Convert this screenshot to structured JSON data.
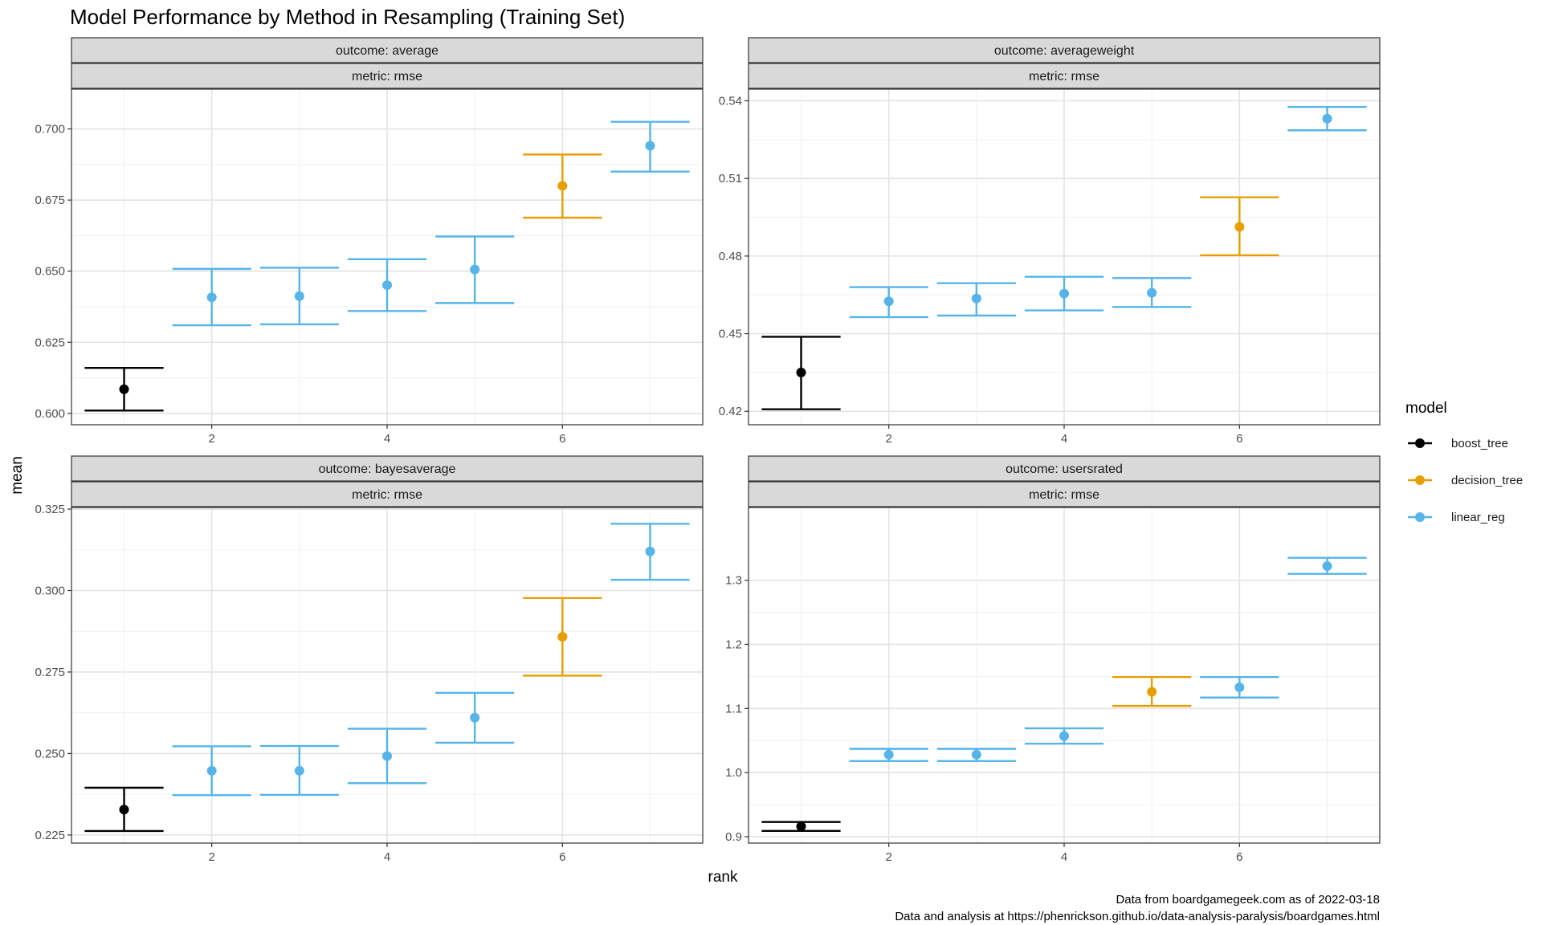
{
  "title": "Model Performance by Method in Resampling (Training Set)",
  "xlabel": "rank",
  "ylabel": "mean",
  "legend": {
    "title": "model",
    "position": "right",
    "entries": [
      {
        "name": "boost_tree",
        "color": "#000000"
      },
      {
        "name": "decision_tree",
        "color": "#E69F00"
      },
      {
        "name": "linear_reg",
        "color": "#56B4E9"
      }
    ]
  },
  "caption": {
    "line1": "Data from boardgamegeek.com as of 2022-03-18",
    "line2": "Data and analysis at https://phenrickson.github.io/data-analysis-paralysis/boardgames.html"
  },
  "chart_data": [
    {
      "type": "errorbar",
      "outcome_label": "outcome: average",
      "metric_label": "metric: rmse",
      "xlim": [
        0.4,
        7.6
      ],
      "x_ticks": [
        2,
        4,
        6
      ],
      "ylim": [
        0.596,
        0.714
      ],
      "y_ticks": [
        0.6,
        0.625,
        0.65,
        0.675,
        0.7
      ],
      "y_tick_labels": [
        "0.600",
        "0.625",
        "0.650",
        "0.675",
        "0.700"
      ],
      "grid": true,
      "points": [
        {
          "rank": 1,
          "model": "boost_tree",
          "mean": 0.6085,
          "lower": 0.601,
          "upper": 0.616
        },
        {
          "rank": 2,
          "model": "linear_reg",
          "mean": 0.6408,
          "lower": 0.631,
          "upper": 0.6508
        },
        {
          "rank": 3,
          "model": "linear_reg",
          "mean": 0.6412,
          "lower": 0.6313,
          "upper": 0.6512
        },
        {
          "rank": 4,
          "model": "linear_reg",
          "mean": 0.6451,
          "lower": 0.636,
          "upper": 0.6542
        },
        {
          "rank": 5,
          "model": "linear_reg",
          "mean": 0.6506,
          "lower": 0.6388,
          "upper": 0.6622
        },
        {
          "rank": 6,
          "model": "decision_tree",
          "mean": 0.68,
          "lower": 0.6688,
          "upper": 0.691
        },
        {
          "rank": 7,
          "model": "linear_reg",
          "mean": 0.6941,
          "lower": 0.685,
          "upper": 0.7025
        }
      ]
    },
    {
      "type": "errorbar",
      "outcome_label": "outcome: averageweight",
      "metric_label": "metric: rmse",
      "xlim": [
        0.4,
        7.6
      ],
      "x_ticks": [
        2,
        4,
        6
      ],
      "ylim": [
        0.4148,
        0.5445
      ],
      "y_ticks": [
        0.42,
        0.45,
        0.48,
        0.51,
        0.54
      ],
      "y_tick_labels": [
        "0.42",
        "0.45",
        "0.48",
        "0.51",
        "0.54"
      ],
      "grid": true,
      "points": [
        {
          "rank": 1,
          "model": "boost_tree",
          "mean": 0.435,
          "lower": 0.4208,
          "upper": 0.4488
        },
        {
          "rank": 2,
          "model": "linear_reg",
          "mean": 0.4625,
          "lower": 0.4564,
          "upper": 0.468
        },
        {
          "rank": 3,
          "model": "linear_reg",
          "mean": 0.4636,
          "lower": 0.457,
          "upper": 0.4695
        },
        {
          "rank": 4,
          "model": "linear_reg",
          "mean": 0.4655,
          "lower": 0.459,
          "upper": 0.472
        },
        {
          "rank": 5,
          "model": "linear_reg",
          "mean": 0.4658,
          "lower": 0.4603,
          "upper": 0.4715
        },
        {
          "rank": 6,
          "model": "decision_tree",
          "mean": 0.4913,
          "lower": 0.4803,
          "upper": 0.5027
        },
        {
          "rank": 7,
          "model": "linear_reg",
          "mean": 0.5331,
          "lower": 0.5286,
          "upper": 0.5376
        }
      ]
    },
    {
      "type": "errorbar",
      "outcome_label": "outcome: bayesaverage",
      "metric_label": "metric: rmse",
      "xlim": [
        0.4,
        7.6
      ],
      "x_ticks": [
        2,
        4,
        6
      ],
      "ylim": [
        0.2225,
        0.3255
      ],
      "y_ticks": [
        0.225,
        0.25,
        0.275,
        0.3,
        0.325
      ],
      "y_tick_labels": [
        "0.225",
        "0.250",
        "0.275",
        "0.300",
        "0.325"
      ],
      "grid": true,
      "points": [
        {
          "rank": 1,
          "model": "boost_tree",
          "mean": 0.2328,
          "lower": 0.2262,
          "upper": 0.2395
        },
        {
          "rank": 2,
          "model": "linear_reg",
          "mean": 0.2447,
          "lower": 0.2372,
          "upper": 0.2522
        },
        {
          "rank": 3,
          "model": "linear_reg",
          "mean": 0.2447,
          "lower": 0.2373,
          "upper": 0.2523
        },
        {
          "rank": 4,
          "model": "linear_reg",
          "mean": 0.2492,
          "lower": 0.2409,
          "upper": 0.2576
        },
        {
          "rank": 5,
          "model": "linear_reg",
          "mean": 0.261,
          "lower": 0.2533,
          "upper": 0.2686
        },
        {
          "rank": 6,
          "model": "decision_tree",
          "mean": 0.2858,
          "lower": 0.2739,
          "upper": 0.2977
        },
        {
          "rank": 7,
          "model": "linear_reg",
          "mean": 0.312,
          "lower": 0.3033,
          "upper": 0.3205
        }
      ]
    },
    {
      "type": "errorbar",
      "outcome_label": "outcome: usersrated",
      "metric_label": "metric: rmse",
      "xlim": [
        0.4,
        7.6
      ],
      "x_ticks": [
        2,
        4,
        6
      ],
      "ylim": [
        0.89,
        1.4135
      ],
      "y_ticks": [
        0.9,
        1.0,
        1.1,
        1.2,
        1.3
      ],
      "y_tick_labels": [
        "0.9",
        "1.0",
        "1.1",
        "1.2",
        "1.3"
      ],
      "grid": true,
      "points": [
        {
          "rank": 1,
          "model": "boost_tree",
          "mean": 0.916,
          "lower": 0.909,
          "upper": 0.923
        },
        {
          "rank": 2,
          "model": "linear_reg",
          "mean": 1.028,
          "lower": 1.018,
          "upper": 1.037
        },
        {
          "rank": 3,
          "model": "linear_reg",
          "mean": 1.028,
          "lower": 1.018,
          "upper": 1.037
        },
        {
          "rank": 4,
          "model": "linear_reg",
          "mean": 1.057,
          "lower": 1.045,
          "upper": 1.069
        },
        {
          "rank": 5,
          "model": "decision_tree",
          "mean": 1.126,
          "lower": 1.104,
          "upper": 1.149
        },
        {
          "rank": 6,
          "model": "linear_reg",
          "mean": 1.133,
          "lower": 1.117,
          "upper": 1.149
        },
        {
          "rank": 7,
          "model": "linear_reg",
          "mean": 1.322,
          "lower": 1.31,
          "upper": 1.335
        }
      ]
    }
  ]
}
